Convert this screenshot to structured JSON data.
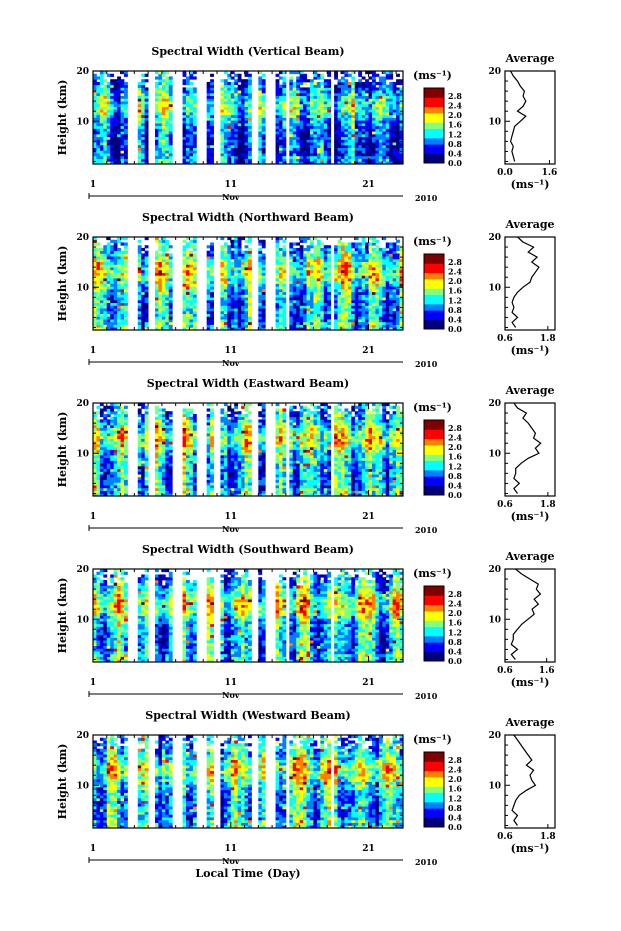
{
  "figure": {
    "x_axis_label": "Local Time (Day)",
    "month_label": "Nov",
    "year_label": "2010",
    "x_ticks": [
      "1",
      "11",
      "21"
    ],
    "y_axis_label": "Height (km)",
    "y_ticks": [
      "20",
      "10"
    ],
    "colorbar_unit": "(ms⁻¹)",
    "colorbar_ticks": [
      "2.8",
      "2.4",
      "2.0",
      "1.6",
      "1.2",
      "0.8",
      "0.4",
      "0.0"
    ],
    "avg_title": "Average",
    "avg_xlabel": "(ms⁻¹)",
    "colors": [
      "#00007f",
      "#0000ff",
      "#0080ff",
      "#00ffff",
      "#80ff80",
      "#ffff00",
      "#ff8000",
      "#ff0000",
      "#800000"
    ]
  },
  "chart_data": [
    {
      "type": "heatmap",
      "title": "Spectral Width (Vertical Beam)",
      "xlabel": "",
      "ylabel": "Height (km)",
      "xlim": [
        1,
        23.5
      ],
      "ylim": [
        1.5,
        20
      ],
      "clim": [
        0.0,
        3.0
      ],
      "data_gaps_days": [
        [
          3.4,
          4.2
        ],
        [
          5.1,
          5.6
        ],
        [
          6.8,
          7.5
        ],
        [
          8.6,
          9.3
        ],
        [
          9.8,
          10.2
        ],
        [
          12.4,
          12.9
        ],
        [
          13.6,
          14.3
        ],
        [
          15.0,
          15.3
        ],
        [
          18.3,
          18.6
        ]
      ],
      "average_profile": {
        "xticks": [
          0.0,
          1.6
        ],
        "xlim": [
          0.0,
          1.8
        ],
        "height_km": [
          2,
          3,
          4,
          5,
          6,
          7,
          8,
          9,
          10,
          11,
          12,
          13,
          14,
          15,
          16,
          17,
          18,
          19,
          20
        ],
        "width_ms": [
          0.35,
          0.3,
          0.25,
          0.3,
          0.2,
          0.25,
          0.3,
          0.35,
          0.55,
          0.75,
          0.45,
          0.65,
          0.75,
          0.65,
          0.7,
          0.55,
          0.45,
          0.3,
          0.2
        ]
      }
    },
    {
      "type": "heatmap",
      "title": "Spectral Width (Northward Beam)",
      "xlabel": "",
      "ylabel": "Height (km)",
      "xlim": [
        1,
        23.5
      ],
      "ylim": [
        1.5,
        20
      ],
      "clim": [
        0.0,
        3.0
      ],
      "data_gaps_days": [
        [
          3.4,
          4.2
        ],
        [
          5.1,
          5.6
        ],
        [
          6.8,
          7.5
        ],
        [
          8.6,
          9.3
        ],
        [
          9.8,
          10.2
        ],
        [
          12.4,
          12.9
        ],
        [
          13.6,
          14.3
        ],
        [
          15.0,
          15.3
        ],
        [
          18.3,
          18.6
        ]
      ],
      "average_profile": {
        "xticks": [
          0.6,
          1.8
        ],
        "xlim": [
          0.6,
          2.0
        ],
        "height_km": [
          2,
          3,
          4,
          5,
          6,
          7,
          8,
          9,
          10,
          11,
          12,
          13,
          14,
          15,
          16,
          17,
          18,
          19,
          20
        ],
        "width_ms": [
          0.9,
          0.8,
          0.95,
          0.8,
          0.85,
          0.8,
          0.85,
          0.95,
          1.1,
          1.3,
          1.35,
          1.45,
          1.55,
          1.35,
          1.5,
          1.25,
          1.4,
          1.1,
          0.95
        ]
      }
    },
    {
      "type": "heatmap",
      "title": "Spectral Width (Eastward Beam)",
      "xlabel": "",
      "ylabel": "Height (km)",
      "xlim": [
        1,
        23.5
      ],
      "ylim": [
        1.5,
        20
      ],
      "clim": [
        0.0,
        3.0
      ],
      "data_gaps_days": [
        [
          3.4,
          4.2
        ],
        [
          5.1,
          5.6
        ],
        [
          6.8,
          7.5
        ],
        [
          8.6,
          9.3
        ],
        [
          9.8,
          10.2
        ],
        [
          12.4,
          12.9
        ],
        [
          13.6,
          14.3
        ],
        [
          15.0,
          15.3
        ],
        [
          18.3,
          18.6
        ]
      ],
      "average_profile": {
        "xticks": [
          0.6,
          1.8
        ],
        "xlim": [
          0.6,
          2.0
        ],
        "height_km": [
          2,
          3,
          4,
          5,
          6,
          7,
          8,
          9,
          10,
          11,
          12,
          13,
          14,
          15,
          16,
          17,
          18,
          19,
          20
        ],
        "width_ms": [
          0.95,
          0.85,
          1.0,
          0.85,
          0.9,
          0.9,
          1.05,
          1.25,
          1.55,
          1.45,
          1.6,
          1.4,
          1.45,
          1.35,
          1.25,
          1.1,
          1.2,
          0.95,
          0.85
        ]
      }
    },
    {
      "type": "heatmap",
      "title": "Spectral Width (Southward Beam)",
      "xlabel": "",
      "ylabel": "Height (km)",
      "xlim": [
        1,
        23.5
      ],
      "ylim": [
        1.5,
        20
      ],
      "clim": [
        0.0,
        3.0
      ],
      "data_gaps_days": [
        [
          3.4,
          4.2
        ],
        [
          5.1,
          5.6
        ],
        [
          6.8,
          7.5
        ],
        [
          8.6,
          9.3
        ],
        [
          9.8,
          10.2
        ],
        [
          12.4,
          12.9
        ],
        [
          13.6,
          14.3
        ],
        [
          15.0,
          15.3
        ],
        [
          18.3,
          18.6
        ]
      ],
      "average_profile": {
        "xticks": [
          0.6,
          1.6
        ],
        "xlim": [
          0.6,
          1.8
        ],
        "height_km": [
          2,
          3,
          4,
          5,
          6,
          7,
          8,
          9,
          10,
          11,
          12,
          13,
          14,
          15,
          16,
          17,
          18,
          19,
          20
        ],
        "width_ms": [
          0.85,
          0.75,
          0.9,
          0.75,
          0.8,
          0.8,
          0.9,
          1.0,
          1.15,
          1.3,
          1.25,
          1.4,
          1.3,
          1.45,
          1.35,
          1.4,
          1.2,
          1.0,
          0.85
        ]
      }
    },
    {
      "type": "heatmap",
      "title": "Spectral Width (Westward Beam)",
      "xlabel": "Local Time (Day)",
      "ylabel": "Height (km)",
      "xlim": [
        1,
        23.5
      ],
      "ylim": [
        1.5,
        20
      ],
      "clim": [
        0.0,
        3.0
      ],
      "data_gaps_days": [
        [
          3.4,
          4.2
        ],
        [
          5.1,
          5.6
        ],
        [
          6.8,
          7.5
        ],
        [
          8.6,
          9.3
        ],
        [
          9.8,
          10.2
        ],
        [
          12.4,
          12.9
        ],
        [
          13.6,
          14.3
        ],
        [
          15.0,
          15.3
        ],
        [
          18.3,
          18.6
        ]
      ],
      "average_profile": {
        "xticks": [
          0.6,
          1.8
        ],
        "xlim": [
          0.6,
          2.0
        ],
        "height_km": [
          2,
          3,
          4,
          5,
          6,
          7,
          8,
          9,
          10,
          11,
          12,
          13,
          14,
          15,
          16,
          17,
          18,
          19,
          20
        ],
        "width_ms": [
          0.95,
          0.85,
          0.95,
          0.8,
          0.85,
          0.9,
          1.0,
          1.2,
          1.45,
          1.35,
          1.3,
          1.4,
          1.2,
          1.35,
          1.25,
          1.15,
          1.05,
          0.95,
          0.85
        ]
      }
    }
  ]
}
